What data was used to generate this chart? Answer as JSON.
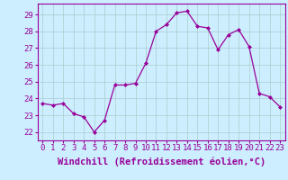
{
  "x": [
    0,
    1,
    2,
    3,
    4,
    5,
    6,
    7,
    8,
    9,
    10,
    11,
    12,
    13,
    14,
    15,
    16,
    17,
    18,
    19,
    20,
    21,
    22,
    23
  ],
  "y": [
    23.7,
    23.6,
    23.7,
    23.1,
    22.9,
    22.0,
    22.7,
    24.8,
    24.8,
    24.9,
    26.1,
    28.0,
    28.4,
    29.1,
    29.2,
    28.3,
    28.2,
    26.9,
    27.8,
    28.1,
    27.1,
    24.3,
    24.1,
    23.5
  ],
  "line_color": "#990099",
  "marker": "D",
  "marker_size": 2.0,
  "bg_color": "#cceeff",
  "grid_color": "#aacccc",
  "ylabel_ticks": [
    22,
    23,
    24,
    25,
    26,
    27,
    28,
    29
  ],
  "xlabel": "Windchill (Refroidissement éolien,°C)",
  "ylim": [
    21.5,
    29.65
  ],
  "xlim": [
    -0.5,
    23.5
  ],
  "tick_fontsize": 6.5,
  "xlabel_fontsize": 7.5,
  "tick_color": "#990099"
}
